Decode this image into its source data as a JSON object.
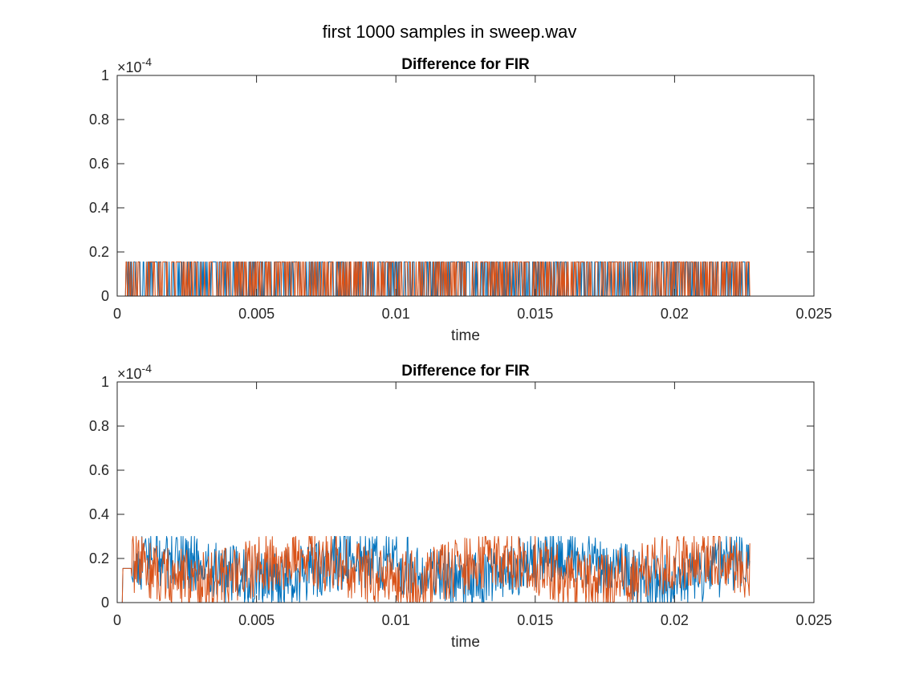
{
  "figure_title": "first 1000 samples in sweep.wav",
  "colors": {
    "series1": "#0072BD",
    "series2": "#D95319",
    "axis": "#262626"
  },
  "chart_data": [
    {
      "type": "line",
      "title": "Difference for FIR",
      "xlabel": "time",
      "ylabel": "",
      "xlim": [
        0,
        0.025
      ],
      "ylim": [
        0,
        1
      ],
      "y_exponent_label": "×10",
      "y_exponent_value": "-4",
      "xticks": [
        "0",
        "0.005",
        "0.01",
        "0.015",
        "0.02",
        "0.025"
      ],
      "yticks": [
        "0",
        "0.2",
        "0.4",
        "0.6",
        "0.8",
        "1"
      ],
      "grid": false,
      "series": [
        {
          "values_range": [
            0,
            0.155
          ],
          "x_range": [
            0,
            0.0227
          ],
          "pattern": "binary"
        },
        {
          "values_range": [
            0,
            0.155
          ],
          "x_range": [
            0,
            0.0227
          ],
          "pattern": "binary"
        }
      ]
    },
    {
      "type": "line",
      "title": "Difference for FIR",
      "xlabel": "time",
      "ylabel": "",
      "xlim": [
        0,
        0.025
      ],
      "ylim": [
        0,
        1
      ],
      "y_exponent_label": "×10",
      "y_exponent_value": "-4",
      "xticks": [
        "0",
        "0.005",
        "0.01",
        "0.015",
        "0.02",
        "0.025"
      ],
      "yticks": [
        "0",
        "0.2",
        "0.4",
        "0.6",
        "0.8",
        "1"
      ],
      "grid": false,
      "series": [
        {
          "values_range": [
            0,
            0.3
          ],
          "x_range": [
            0,
            0.0227
          ],
          "pattern": "noise"
        },
        {
          "values_range": [
            0,
            0.3
          ],
          "x_range": [
            0,
            0.0227
          ],
          "pattern": "noise"
        }
      ]
    }
  ]
}
